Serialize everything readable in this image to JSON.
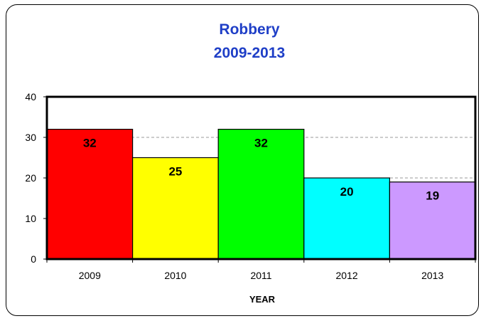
{
  "chart_data": {
    "type": "bar",
    "title": "Robbery",
    "subtitle": "2009-2013",
    "xlabel": "YEAR",
    "ylabel": "",
    "categories": [
      "2009",
      "2010",
      "2011",
      "2012",
      "2013"
    ],
    "values": [
      32,
      25,
      32,
      20,
      19
    ],
    "data_labels": [
      "32",
      "25",
      "32",
      "20",
      "19"
    ],
    "colors": [
      "#ff0000",
      "#ffff00",
      "#00ff00",
      "#00ffff",
      "#cc99ff"
    ],
    "ylim": [
      0,
      40
    ],
    "yticks": [
      "0",
      "10",
      "20",
      "30",
      "40"
    ],
    "grid": true,
    "grid_style": "dashed",
    "legend": "none"
  }
}
